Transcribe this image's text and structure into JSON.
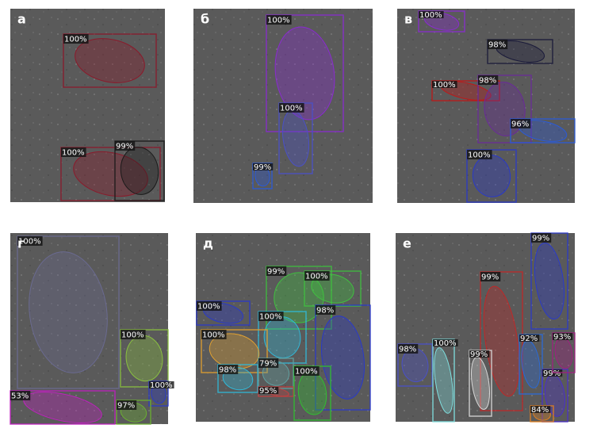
{
  "panels": [
    {
      "label": "а",
      "detections": [
        {
          "score": "100%",
          "color": "#8b1a2b"
        },
        {
          "score": "100%",
          "color": "#8b1a2b"
        },
        {
          "score": "99%",
          "color": "#1a1a1a"
        }
      ]
    },
    {
      "label": "б",
      "detections": [
        {
          "score": "100%",
          "color": "#8a2bd0"
        },
        {
          "score": "100%",
          "color": "#4a50c8"
        },
        {
          "score": "99%",
          "color": "#2a5ad8"
        }
      ]
    },
    {
      "label": "в",
      "detections": [
        {
          "score": "100%",
          "color": "#8a2bd0"
        },
        {
          "score": "100%",
          "color": "#c01818"
        },
        {
          "score": "98%",
          "color": "#1a1a3a"
        },
        {
          "score": "98%",
          "color": "#6a2a9a"
        },
        {
          "score": "96%",
          "color": "#2a5ad8"
        },
        {
          "score": "100%",
          "color": "#2a3ac8"
        }
      ]
    },
    {
      "label": "г",
      "detections": [
        {
          "score": "100%",
          "color": "#6a6a90"
        },
        {
          "score": "100%",
          "color": "#8ac040"
        },
        {
          "score": "53%",
          "color": "#c020c0"
        },
        {
          "score": "100%",
          "color": "#2a3ac8"
        },
        {
          "score": "97%",
          "color": "#6ab030"
        }
      ]
    },
    {
      "label": "д",
      "detections": [
        {
          "score": "100%",
          "color": "#2a3ac8"
        },
        {
          "score": "99%",
          "color": "#40c040"
        },
        {
          "score": "100%",
          "color": "#40c040"
        },
        {
          "score": "98%",
          "color": "#2a3ac8"
        },
        {
          "score": "100%",
          "color": "#30b8d8"
        },
        {
          "score": "100%",
          "color": "#e0a030"
        },
        {
          "score": "98%",
          "color": "#30b8d8"
        },
        {
          "score": "79%",
          "color": "#60a0a0"
        },
        {
          "score": "95%",
          "color": "#c04040"
        },
        {
          "score": "100%",
          "color": "#30c030"
        }
      ]
    },
    {
      "label": "е",
      "detections": [
        {
          "score": "99%",
          "color": "#c02828"
        },
        {
          "score": "99%",
          "color": "#2a3ac8"
        },
        {
          "score": "98%",
          "color": "#4a50c8"
        },
        {
          "score": "100%",
          "color": "#80e0e0"
        },
        {
          "score": "99%",
          "color": "#d8d8d8"
        },
        {
          "score": "92%",
          "color": "#2a6ad8"
        },
        {
          "score": "99%",
          "color": "#4a30c8"
        },
        {
          "score": "84%",
          "color": "#e08020"
        },
        {
          "score": "93%",
          "color": "#a02080"
        }
      ]
    }
  ]
}
